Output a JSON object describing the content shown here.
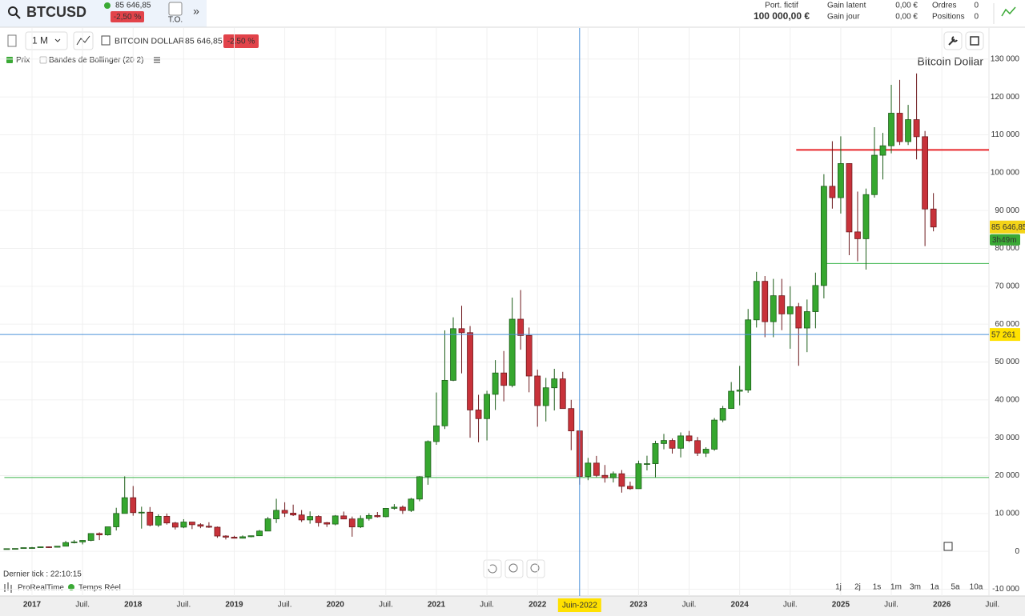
{
  "header": {
    "symbol": "BTCUSD",
    "price": "85 646,85",
    "change": "-2,50 %",
    "to": "T.O.",
    "portfolio_label": "Port. fictif",
    "portfolio_value": "100 000,00 €",
    "gain_latent_label": "Gain latent",
    "gain_latent": "0,00 €",
    "gain_jour_label": "Gain jour",
    "gain_jour": "0,00 €",
    "orders_label": "Ordres",
    "orders": "0",
    "positions_label": "Positions",
    "positions": "0"
  },
  "toolbar": {
    "period": "1 M",
    "instrument": "BITCOIN DOLLAR",
    "price": "85 646,85",
    "change": "-2.50 %",
    "legend": [
      "Prix",
      "Bandes de Bollinger (20 2)"
    ]
  },
  "footer": {
    "last_tick": "Dernier tick : 22:10:15",
    "brand": "ProRealTime",
    "realtime": "Temps Réel",
    "ranges": [
      "1j",
      "2j",
      "1s",
      "1m",
      "3m",
      "1a",
      "5a",
      "10a"
    ]
  },
  "chart_data": {
    "type": "candlestick",
    "watermark": "Bitcoin Dollar",
    "up_color": "#36a72f",
    "down_color": "#c8323a",
    "x": [
      "2016-10",
      "2016-11",
      "2016-12",
      "2017-01",
      "2017-02",
      "2017-03",
      "2017-04",
      "2017-05",
      "2017-06",
      "2017-07",
      "2017-08",
      "2017-09",
      "2017-10",
      "2017-11",
      "2017-12",
      "2018-01",
      "2018-02",
      "2018-03",
      "2018-04",
      "2018-05",
      "2018-06",
      "2018-07",
      "2018-08",
      "2018-09",
      "2018-10",
      "2018-11",
      "2018-12",
      "2019-01",
      "2019-02",
      "2019-03",
      "2019-04",
      "2019-05",
      "2019-06",
      "2019-07",
      "2019-08",
      "2019-09",
      "2019-10",
      "2019-11",
      "2019-12",
      "2020-01",
      "2020-02",
      "2020-03",
      "2020-04",
      "2020-05",
      "2020-06",
      "2020-07",
      "2020-08",
      "2020-09",
      "2020-10",
      "2020-11",
      "2020-12",
      "2021-01",
      "2021-02",
      "2021-03",
      "2021-04",
      "2021-05",
      "2021-06",
      "2021-07",
      "2021-08",
      "2021-09",
      "2021-10",
      "2021-11",
      "2021-12",
      "2022-01",
      "2022-02",
      "2022-03",
      "2022-04",
      "2022-05",
      "2022-06",
      "2022-07",
      "2022-08",
      "2022-09",
      "2022-10",
      "2022-11",
      "2022-12",
      "2023-01",
      "2023-02",
      "2023-03",
      "2023-04",
      "2023-05",
      "2023-06",
      "2023-07",
      "2023-08",
      "2023-09",
      "2023-10",
      "2023-11",
      "2023-12",
      "2024-01",
      "2024-02",
      "2024-03",
      "2024-04",
      "2024-05",
      "2024-06",
      "2024-07",
      "2024-08",
      "2024-09",
      "2024-10",
      "2024-11",
      "2024-12",
      "2025-01",
      "2025-02",
      "2025-03",
      "2025-04",
      "2025-05",
      "2025-06",
      "2025-07",
      "2025-08",
      "2025-09",
      "2025-10",
      "2025-11",
      "2025-12"
    ],
    "open": [
      610,
      700,
      745,
      965,
      970,
      1190,
      1080,
      1350,
      2300,
      2480,
      2880,
      4700,
      4340,
      6470,
      10000,
      14160,
      10220,
      10330,
      6930,
      9240,
      7490,
      6390,
      7730,
      7030,
      6630,
      6370,
      4040,
      3740,
      3460,
      3850,
      4110,
      5350,
      8570,
      10820,
      10090,
      9600,
      8290,
      9200,
      7570,
      7200,
      9350,
      8540,
      6440,
      8660,
      9460,
      9140,
      11350,
      11660,
      10780,
      13800,
      19700,
      28990,
      33140,
      45160,
      58800,
      57750,
      37330,
      35040,
      41460,
      47100,
      43820,
      61300,
      57000,
      46300,
      38480,
      43190,
      45540,
      37700,
      31800,
      19780,
      23300,
      20050,
      19420,
      20490,
      17170,
      16540,
      23130,
      23150,
      28470,
      29270,
      27220,
      30480,
      29230,
      25940,
      26970,
      34660,
      37720,
      42280,
      42580,
      61130,
      71300,
      60640,
      67500,
      62700,
      64600,
      58970,
      63300,
      70200,
      96400,
      93400,
      102400,
      84350,
      82550,
      94200,
      104600,
      107100,
      115700,
      108200,
      114000,
      109500,
      90400
    ],
    "high": [
      740,
      750,
      975,
      1150,
      1200,
      1290,
      1350,
      2760,
      3000,
      2930,
      4750,
      5000,
      6470,
      11500,
      19800,
      17250,
      11780,
      11700,
      9760,
      9980,
      7770,
      8490,
      7760,
      7410,
      7680,
      6550,
      4240,
      4110,
      4210,
      4110,
      5640,
      9070,
      13880,
      12950,
      12330,
      10900,
      10540,
      9520,
      7750,
      9580,
      10500,
      9180,
      9470,
      10070,
      10380,
      11430,
      12470,
      12090,
      14100,
      19860,
      29300,
      41950,
      58350,
      61800,
      64850,
      59500,
      41330,
      42400,
      50500,
      52900,
      67000,
      69000,
      59100,
      47990,
      45800,
      48200,
      47400,
      40000,
      31900,
      24670,
      25200,
      22800,
      21080,
      21470,
      18390,
      23950,
      25250,
      29200,
      31000,
      29800,
      31400,
      31800,
      30200,
      27480,
      35200,
      38400,
      44700,
      48970,
      64000,
      73800,
      72700,
      71950,
      71950,
      70000,
      65600,
      66500,
      73600,
      99600,
      108300,
      109600,
      102500,
      95000,
      95800,
      112000,
      110500,
      123200,
      124500,
      117900,
      126200,
      111000,
      94600
    ],
    "low": [
      605,
      680,
      740,
      750,
      940,
      890,
      1060,
      1350,
      2080,
      1830,
      2670,
      2970,
      4140,
      5500,
      10000,
      9400,
      6000,
      6600,
      6430,
      7060,
      5760,
      6120,
      5880,
      6120,
      6200,
      3560,
      3130,
      3400,
      3390,
      3700,
      4100,
      5330,
      7470,
      9070,
      9320,
      7750,
      7300,
      6520,
      6430,
      6870,
      8470,
      3860,
      6150,
      8120,
      8910,
      8990,
      11000,
      9880,
      10380,
      13220,
      17580,
      28130,
      32300,
      44950,
      47000,
      30000,
      28800,
      29280,
      37330,
      39600,
      43300,
      53250,
      42000,
      32900,
      34300,
      37200,
      37700,
      26700,
      17600,
      18780,
      19600,
      18150,
      18180,
      15500,
      16260,
      16500,
      21360,
      19570,
      26950,
      25810,
      24800,
      28860,
      25170,
      24900,
      26560,
      34100,
      37620,
      38550,
      41880,
      59100,
      56550,
      56550,
      58400,
      53500,
      49000,
      52600,
      58900,
      66800,
      90500,
      89200,
      78200,
      76600,
      74400,
      93400,
      98200,
      105100,
      107300,
      107300,
      103500,
      80600,
      84500
    ],
    "close": [
      700,
      745,
      965,
      970,
      1190,
      1080,
      1350,
      2300,
      2480,
      2880,
      4700,
      4340,
      6470,
      10000,
      14160,
      10220,
      10330,
      6930,
      9240,
      7490,
      6390,
      7730,
      7030,
      6630,
      6370,
      4040,
      3740,
      3460,
      3850,
      4110,
      5350,
      8570,
      10820,
      10090,
      9600,
      8290,
      9200,
      7570,
      7200,
      9350,
      8540,
      6440,
      8660,
      9460,
      9140,
      11350,
      11660,
      10780,
      13800,
      19700,
      28990,
      33140,
      45160,
      58800,
      57750,
      37330,
      35040,
      41460,
      47100,
      43820,
      61300,
      57000,
      46300,
      38480,
      43190,
      45540,
      37700,
      31800,
      19780,
      23300,
      20050,
      19420,
      20490,
      17170,
      16540,
      23130,
      23150,
      28470,
      29270,
      27220,
      30480,
      29230,
      25940,
      26970,
      34660,
      37720,
      42280,
      42580,
      61130,
      71300,
      60640,
      67500,
      62700,
      64600,
      58970,
      63300,
      70200,
      96400,
      93400,
      102400,
      84350,
      82550,
      94200,
      104600,
      107100,
      115700,
      108200,
      114000,
      109500,
      90400,
      85646.85
    ],
    "ylim": [
      -11800,
      138200
    ],
    "yticks": [
      {
        "value": 130000,
        "label": "130 000"
      },
      {
        "value": 120000,
        "label": "120 000"
      },
      {
        "value": 110000,
        "label": "110 000"
      },
      {
        "value": 100000,
        "label": "100 000"
      },
      {
        "value": 90000,
        "label": "90 000"
      },
      {
        "value": 80000,
        "label": "80 000"
      },
      {
        "value": 70000,
        "label": "70 000"
      },
      {
        "value": 60000,
        "label": "60 000"
      },
      {
        "value": 50000,
        "label": "50 000"
      },
      {
        "value": 40000,
        "label": "40 000"
      },
      {
        "value": 30000,
        "label": "30 000"
      },
      {
        "value": 20000,
        "label": "20 000"
      },
      {
        "value": 10000,
        "label": "10 000"
      },
      0,
      {
        "value": -10000,
        "label": "-10 000"
      }
    ],
    "xticks": [
      {
        "value": "2017-01",
        "label": "2017"
      },
      {
        "value": "2017-07",
        "label": "Juil."
      },
      {
        "value": "2018-01",
        "label": "2018"
      },
      {
        "value": "2018-07",
        "label": "Juil."
      },
      {
        "value": "2019-01",
        "label": "2019"
      },
      {
        "value": "2019-07",
        "label": "Juil."
      },
      {
        "value": "2020-01",
        "label": "2020"
      },
      {
        "value": "2020-07",
        "label": "Juil."
      },
      {
        "value": "2021-01",
        "label": "2021"
      },
      {
        "value": "2021-07",
        "label": "Juil."
      },
      {
        "value": "2022-01",
        "label": "2022"
      },
      {
        "value": "2022-07",
        "label": "Juil."
      },
      {
        "value": "2023-01",
        "label": "2023"
      },
      {
        "value": "2023-07",
        "label": "Juil."
      },
      {
        "value": "2024-01",
        "label": "2024"
      },
      {
        "value": "2024-07",
        "label": "Juil."
      },
      {
        "value": "2025-01",
        "label": "2025"
      },
      {
        "value": "2025-07",
        "label": "Juil."
      },
      {
        "value": "2026-01",
        "label": "2026"
      },
      {
        "value": "2026-07",
        "label": "Juil."
      }
    ],
    "grid": true,
    "levels": [
      {
        "value": 19500,
        "color": "#3cb44b",
        "from": "2016-10"
      },
      {
        "value": 106000,
        "color": "#e8262b",
        "from": "2024-08"
      },
      {
        "value": 76000,
        "color": "#3cb44b",
        "from": "2024-11"
      }
    ],
    "crosshair": {
      "x": "2022-06",
      "x_label": "Juin-2022",
      "y": 57261,
      "y_label": "57 261",
      "color": "#4a90d9"
    },
    "last_price": {
      "value": 85646.85,
      "label": "85 646,85",
      "countdown": "3h49m"
    }
  }
}
